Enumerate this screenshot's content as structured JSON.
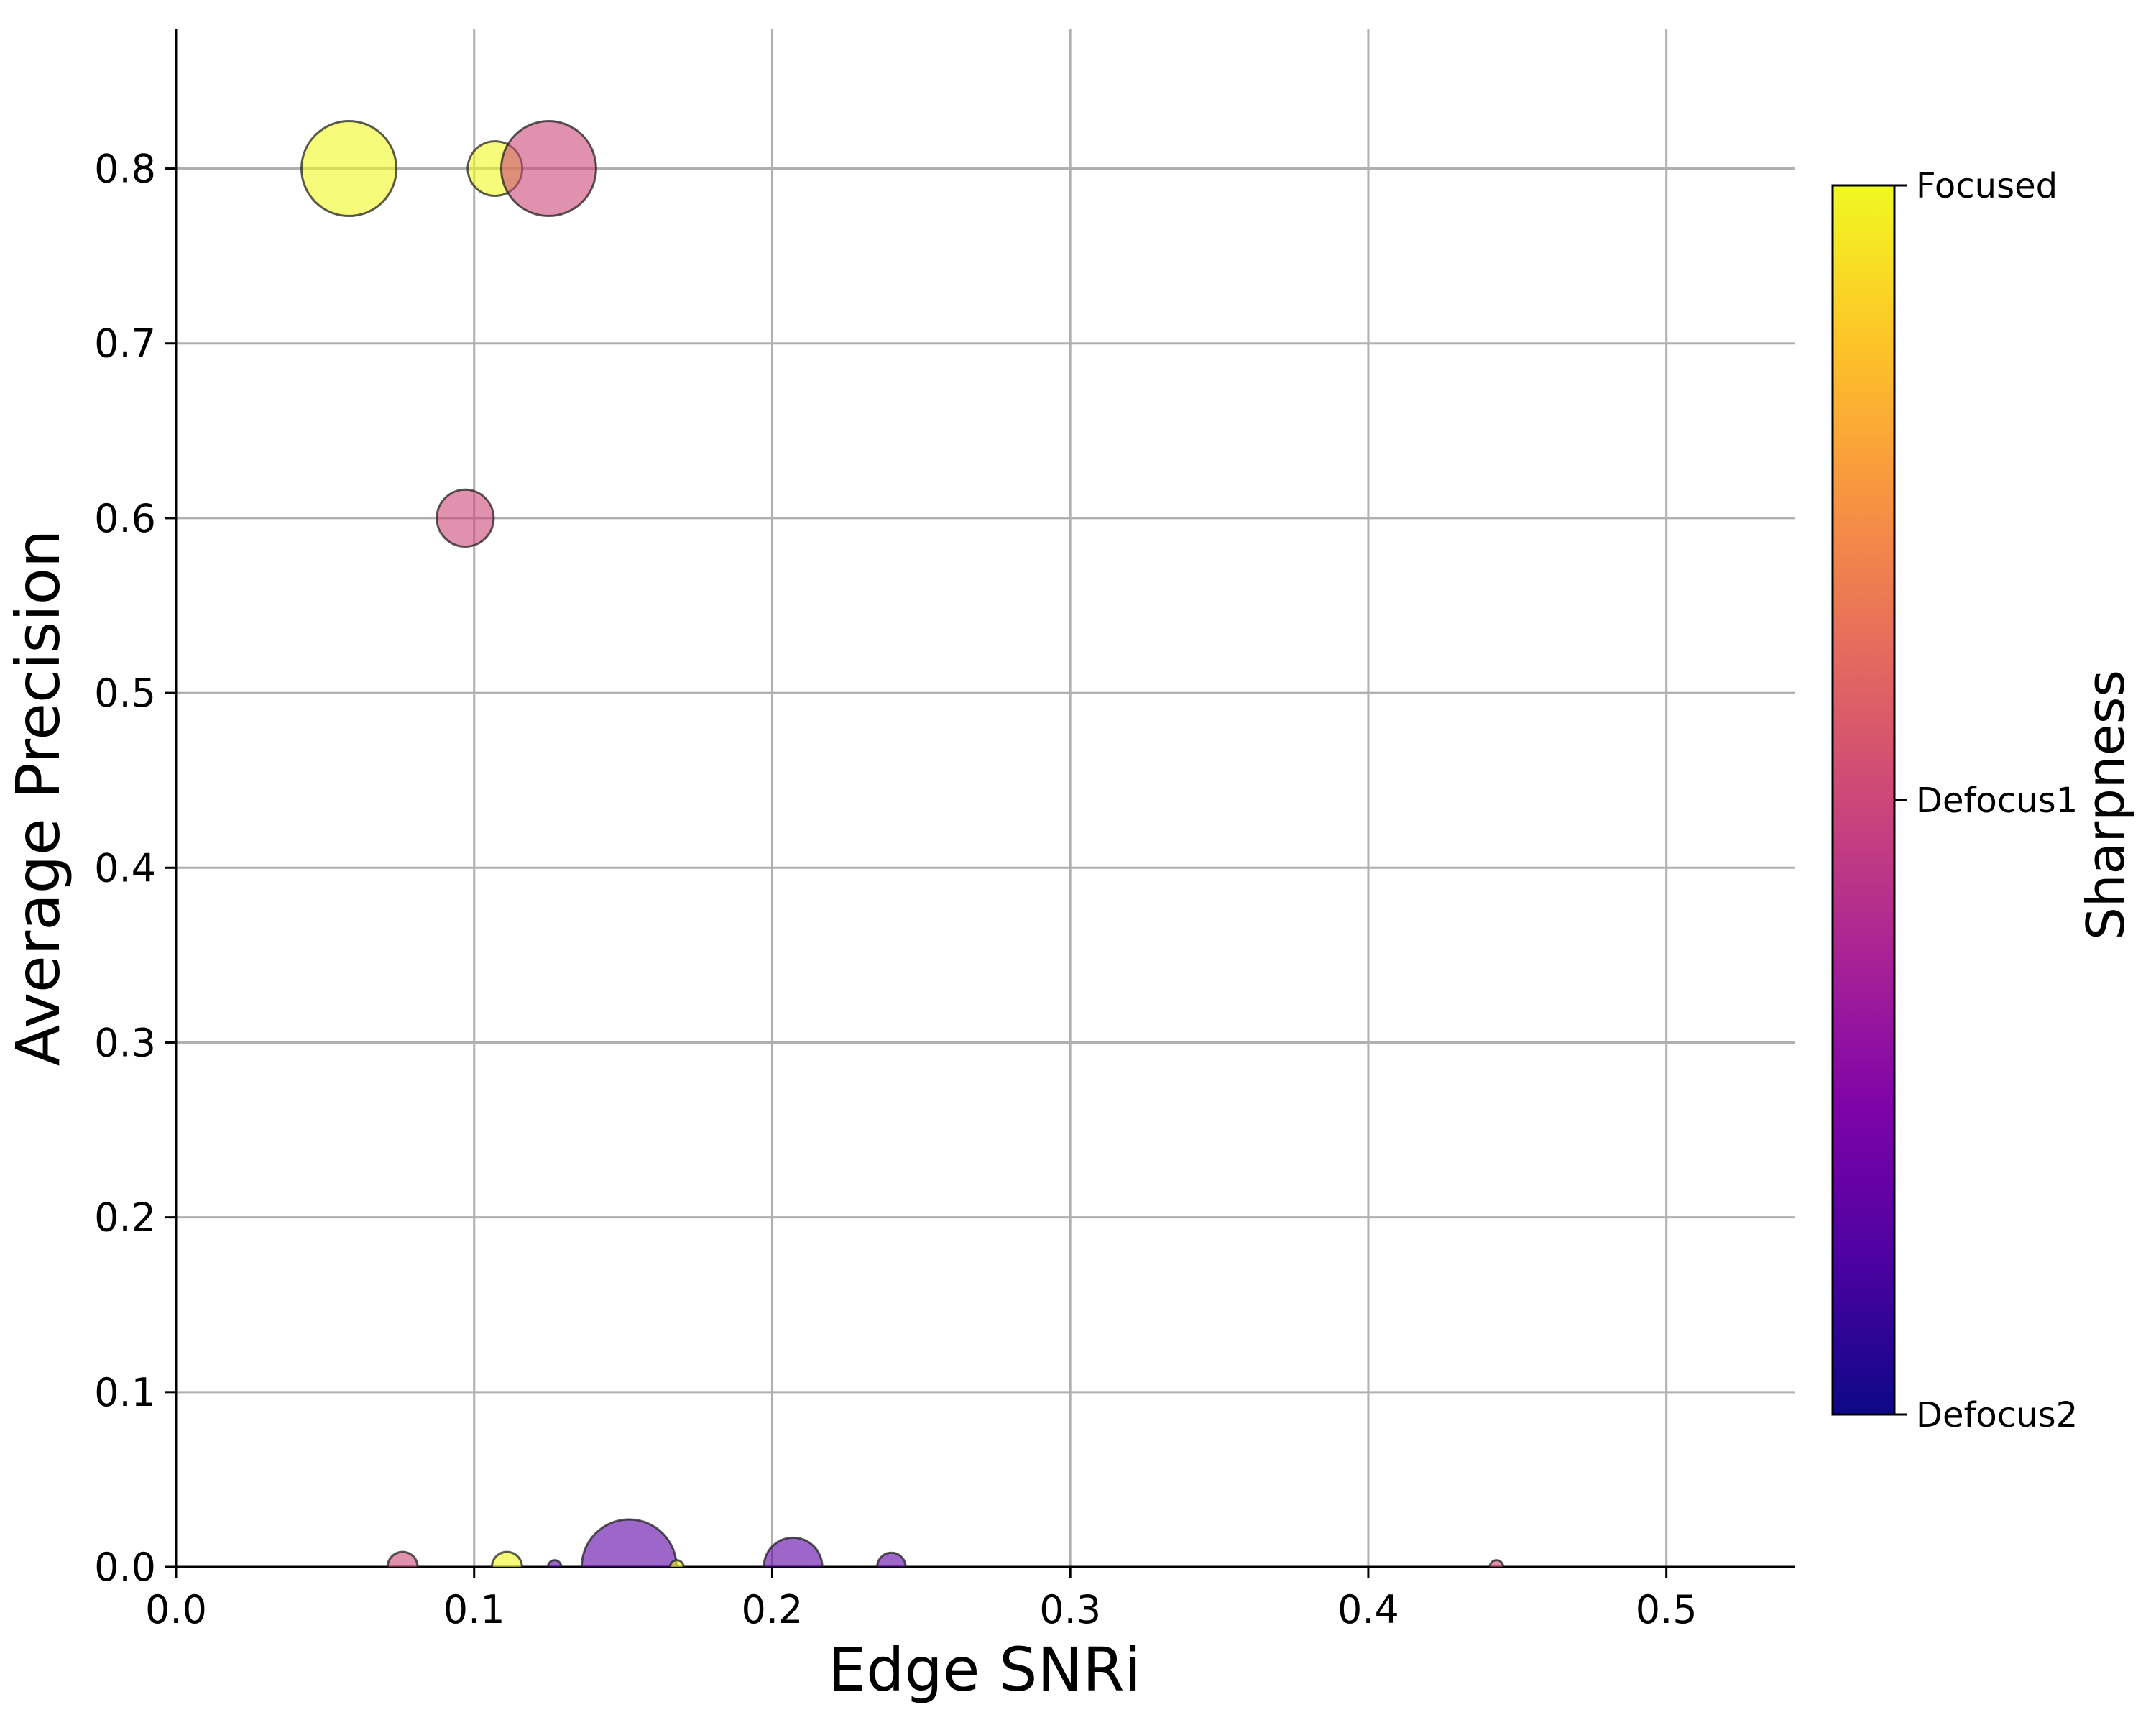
{
  "chart_data": {
    "type": "scatter",
    "xlabel": "Edge SNRi",
    "ylabel": "Average Precision",
    "xlim": [
      0.0,
      0.543
    ],
    "ylim": [
      0.0,
      0.88
    ],
    "xticks": [
      "0.0",
      "0.1",
      "0.2",
      "0.3",
      "0.4",
      "0.5"
    ],
    "yticks": [
      "0.0",
      "0.1",
      "0.2",
      "0.3",
      "0.4",
      "0.5",
      "0.6",
      "0.7",
      "0.8"
    ],
    "grid": true,
    "marker_size_encodes": "not labeled; bubble area varies per point",
    "colorbar": {
      "label": "Sharpness",
      "colormap": "plasma",
      "ticks": [
        "Defocus2",
        "Defocus1",
        "Focused"
      ]
    },
    "category_colors": {
      "Focused": "#f0f921",
      "Defocus1": "#cc4778",
      "Defocus2": "#5c01a6"
    },
    "points": [
      {
        "x": 0.058,
        "y": 0.8,
        "category": "Focused",
        "size": 1.0
      },
      {
        "x": 0.107,
        "y": 0.8,
        "category": "Focused",
        "size": 0.33
      },
      {
        "x": 0.125,
        "y": 0.8,
        "category": "Defocus1",
        "size": 1.0
      },
      {
        "x": 0.097,
        "y": 0.6,
        "category": "Defocus1",
        "size": 0.36
      },
      {
        "x": 0.076,
        "y": 0.0,
        "category": "Defocus1",
        "size": 0.1
      },
      {
        "x": 0.111,
        "y": 0.0,
        "category": "Focused",
        "size": 0.1
      },
      {
        "x": 0.127,
        "y": 0.0,
        "category": "Defocus2",
        "size": 0.02
      },
      {
        "x": 0.152,
        "y": 0.0,
        "category": "Defocus2",
        "size": 1.0
      },
      {
        "x": 0.168,
        "y": 0.0,
        "category": "Focused",
        "size": 0.02
      },
      {
        "x": 0.207,
        "y": 0.0,
        "category": "Defocus2",
        "size": 0.38
      },
      {
        "x": 0.24,
        "y": 0.0,
        "category": "Defocus2",
        "size": 0.09
      },
      {
        "x": 0.443,
        "y": 0.0,
        "category": "Defocus1",
        "size": 0.02
      }
    ]
  }
}
